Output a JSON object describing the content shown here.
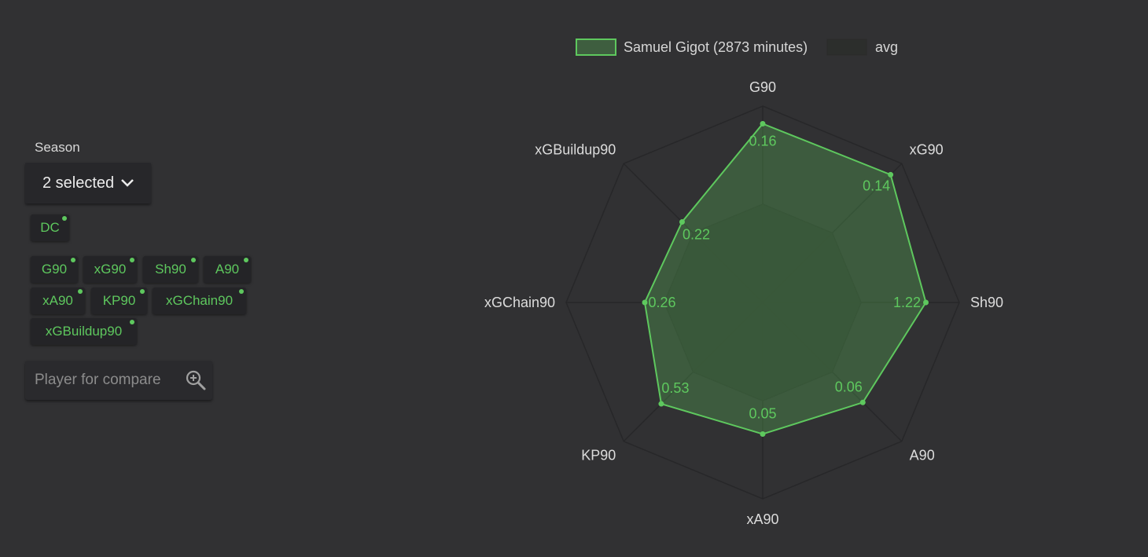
{
  "sidebar": {
    "season_label": "Season",
    "season_value": "2 selected",
    "position_chips": [
      "DC"
    ],
    "metric_chips": [
      "G90",
      "xG90",
      "Sh90",
      "A90",
      "xA90",
      "KP90",
      "xGChain90",
      "xGBuildup90"
    ],
    "compare_placeholder": "Player for compare"
  },
  "colors": {
    "accent": "#5ec85e",
    "background": "#313133"
  },
  "chart_data": {
    "type": "radar",
    "axes": [
      "G90",
      "xG90",
      "Sh90",
      "A90",
      "xA90",
      "KP90",
      "xGChain90",
      "xGBuildup90"
    ],
    "series": [
      {
        "name": "Samuel Gigot (2873 minutes)",
        "values_labels": [
          "0.16",
          "0.14",
          "1.22",
          "0.06",
          "0.05",
          "0.53",
          "0.26",
          "0.22"
        ],
        "relative_level": [
          0.91,
          0.92,
          0.83,
          0.72,
          0.67,
          0.73,
          0.6,
          0.58
        ],
        "color": "#5ec85e"
      },
      {
        "name": "avg",
        "relative_level": [
          0.5,
          0.5,
          0.5,
          0.5,
          0.5,
          0.5,
          0.5,
          0.5
        ],
        "color": "#3a4a3a"
      }
    ],
    "grid_levels": 2,
    "legend_position": "top"
  }
}
